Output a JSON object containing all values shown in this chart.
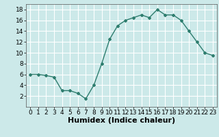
{
  "x": [
    0,
    1,
    2,
    3,
    4,
    5,
    6,
    7,
    8,
    9,
    10,
    11,
    12,
    13,
    14,
    15,
    16,
    17,
    18,
    19,
    20,
    21,
    22,
    23
  ],
  "y": [
    6,
    6,
    5.8,
    5.5,
    3,
    3,
    2.5,
    1.5,
    4,
    8,
    12.5,
    15,
    16,
    16.5,
    17,
    16.5,
    18,
    17,
    17,
    16,
    14,
    12,
    10,
    9.5
  ],
  "line_color": "#2e7d6e",
  "marker": "D",
  "marker_size": 2.0,
  "background_color": "#cce9e9",
  "grid_color": "#ffffff",
  "xlabel": "Humidex (Indice chaleur)",
  "xlabel_fontsize": 8,
  "xlim": [
    -0.5,
    23.5
  ],
  "ylim": [
    0,
    19
  ],
  "yticks": [
    2,
    4,
    6,
    8,
    10,
    12,
    14,
    16,
    18
  ],
  "xtick_labels": [
    "0",
    "1",
    "2",
    "3",
    "4",
    "5",
    "6",
    "7",
    "8",
    "9",
    "10",
    "11",
    "12",
    "13",
    "14",
    "15",
    "16",
    "17",
    "18",
    "19",
    "20",
    "21",
    "22",
    "23"
  ],
  "tick_fontsize": 6.5
}
